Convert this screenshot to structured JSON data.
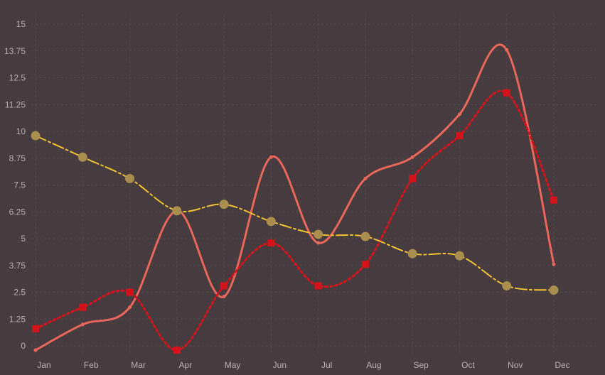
{
  "chart_data": {
    "type": "line",
    "categories": [
      "Jan",
      "Feb",
      "Mar",
      "Apr",
      "May",
      "Jun",
      "Jul",
      "Aug",
      "Sep",
      "Oct",
      "Nov",
      "Dec"
    ],
    "y_ticks": [
      "0",
      "1.25",
      "2.5",
      "3.75",
      "5",
      "6.25",
      "7.5",
      "8.75",
      "10",
      "11.25",
      "12.5",
      "13.75",
      "15"
    ],
    "ylim": [
      0,
      15
    ],
    "grid": true,
    "legend": "none",
    "series": [
      {
        "style": "solid",
        "color": "#e8675a",
        "values": [
          -0.2,
          1,
          1.8,
          6.3,
          2.3,
          8.8,
          4.8,
          7.8,
          8.8,
          10.8,
          13.8,
          3.8
        ]
      },
      {
        "style": "dotted",
        "color": "#d5121a",
        "values": [
          0.8,
          1.8,
          2.5,
          -0.2,
          2.8,
          4.8,
          2.8,
          3.8,
          7.8,
          9.8,
          11.8,
          6.8
        ]
      },
      {
        "style": "dash-dot",
        "color": "#f1c232",
        "marker_color": "#a98e4e",
        "values": [
          9.8,
          8.8,
          7.8,
          6.3,
          6.6,
          5.8,
          5.2,
          5.1,
          4.3,
          4.2,
          2.8,
          2.6
        ]
      }
    ]
  }
}
